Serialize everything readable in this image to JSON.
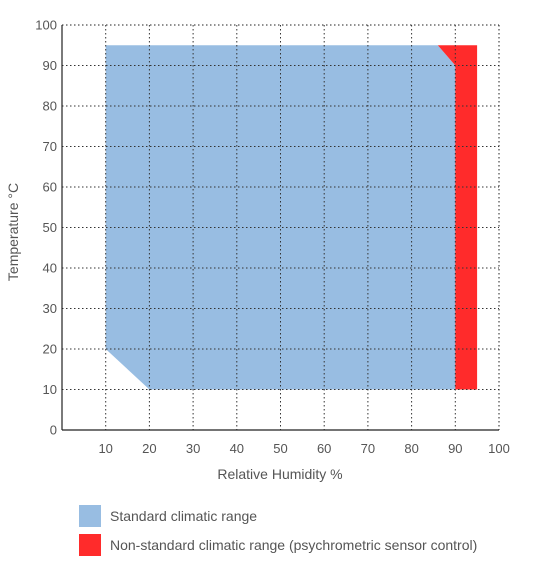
{
  "chart_data": {
    "type": "area",
    "title": "",
    "xlabel": "Relative Humidity %",
    "ylabel": "Temperature °C",
    "xlim": [
      0,
      100
    ],
    "ylim": [
      0,
      100
    ],
    "xticks": [
      10,
      20,
      30,
      40,
      50,
      60,
      70,
      80,
      90,
      100
    ],
    "yticks": [
      0,
      10,
      20,
      30,
      40,
      50,
      60,
      70,
      80,
      90,
      100
    ],
    "grid": true,
    "legend_position": "bottom",
    "series": [
      {
        "name": "Standard climatic range",
        "color": "#98bde2",
        "polygon": [
          [
            10,
            95
          ],
          [
            86,
            95
          ],
          [
            90,
            90
          ],
          [
            90,
            10
          ],
          [
            20,
            10
          ],
          [
            10,
            20
          ]
        ]
      },
      {
        "name": "Non-standard climatic range (psychrometric sensor control)",
        "color": "#ff2b2b",
        "polygon": [
          [
            86,
            95
          ],
          [
            95,
            95
          ],
          [
            95,
            10
          ],
          [
            90,
            10
          ],
          [
            90,
            90
          ]
        ]
      }
    ]
  }
}
